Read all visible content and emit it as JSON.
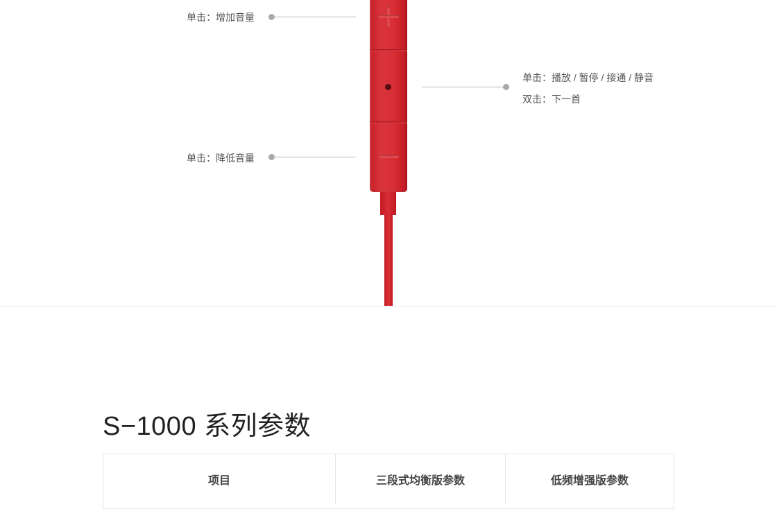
{
  "remote": {
    "volume_up": "单击：增加音量",
    "center_single": "单击：播放 / 暂停 / 接通 / 静音",
    "center_double": "双击：下一首",
    "volume_down": "单击：降低音量"
  },
  "spec": {
    "title": "S−1000 系列参数",
    "columns": [
      "项目",
      "三段式均衡版参数",
      "低频增强版参数"
    ]
  },
  "colors": {
    "remote_red": "#d9303a",
    "callout_gray": "#b8b8b8"
  },
  "icons": [
    "plus-icon",
    "mic-icon",
    "minus-icon"
  ]
}
